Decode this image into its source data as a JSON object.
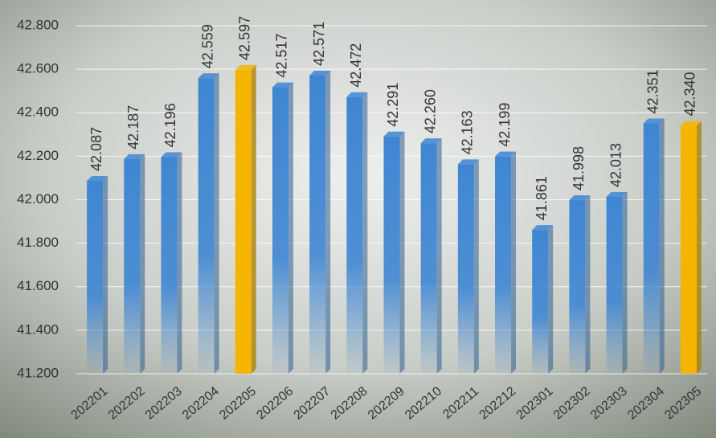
{
  "chart_data": {
    "type": "bar",
    "categories": [
      "202201",
      "202202",
      "202203",
      "202204",
      "202205",
      "202206",
      "202207",
      "202208",
      "202209",
      "202210",
      "202211",
      "202212",
      "202301",
      "202302",
      "202303",
      "202304",
      "202305"
    ],
    "values": [
      42.087,
      42.187,
      42.196,
      42.559,
      42.597,
      42.517,
      42.571,
      42.472,
      42.291,
      42.26,
      42.163,
      42.199,
      41.861,
      41.998,
      42.013,
      42.351,
      42.34
    ],
    "value_labels": [
      "42.087",
      "42.187",
      "42.196",
      "42.559",
      "42.597",
      "42.517",
      "42.571",
      "42.472",
      "42.291",
      "42.260",
      "42.163",
      "42.199",
      "41.861",
      "41.998",
      "42.013",
      "42.351",
      "42.340"
    ],
    "colors": [
      "#3f86d2",
      "#3f86d2",
      "#3f86d2",
      "#3f86d2",
      "#f5b400",
      "#3f86d2",
      "#3f86d2",
      "#3f86d2",
      "#3f86d2",
      "#3f86d2",
      "#3f86d2",
      "#3f86d2",
      "#3f86d2",
      "#3f86d2",
      "#3f86d2",
      "#3f86d2",
      "#f5b400"
    ],
    "ylim": [
      41.2,
      42.8
    ],
    "yticks": [
      {
        "value": 41.2,
        "label": "41.200"
      },
      {
        "value": 41.4,
        "label": "41.400"
      },
      {
        "value": 41.6,
        "label": "41.600"
      },
      {
        "value": 41.8,
        "label": "41.800"
      },
      {
        "value": 42.0,
        "label": "42.000"
      },
      {
        "value": 42.2,
        "label": "42.200"
      },
      {
        "value": 42.4,
        "label": "42.400"
      },
      {
        "value": 42.6,
        "label": "42.600"
      },
      {
        "value": 42.8,
        "label": "42.800"
      }
    ],
    "grid": true
  }
}
